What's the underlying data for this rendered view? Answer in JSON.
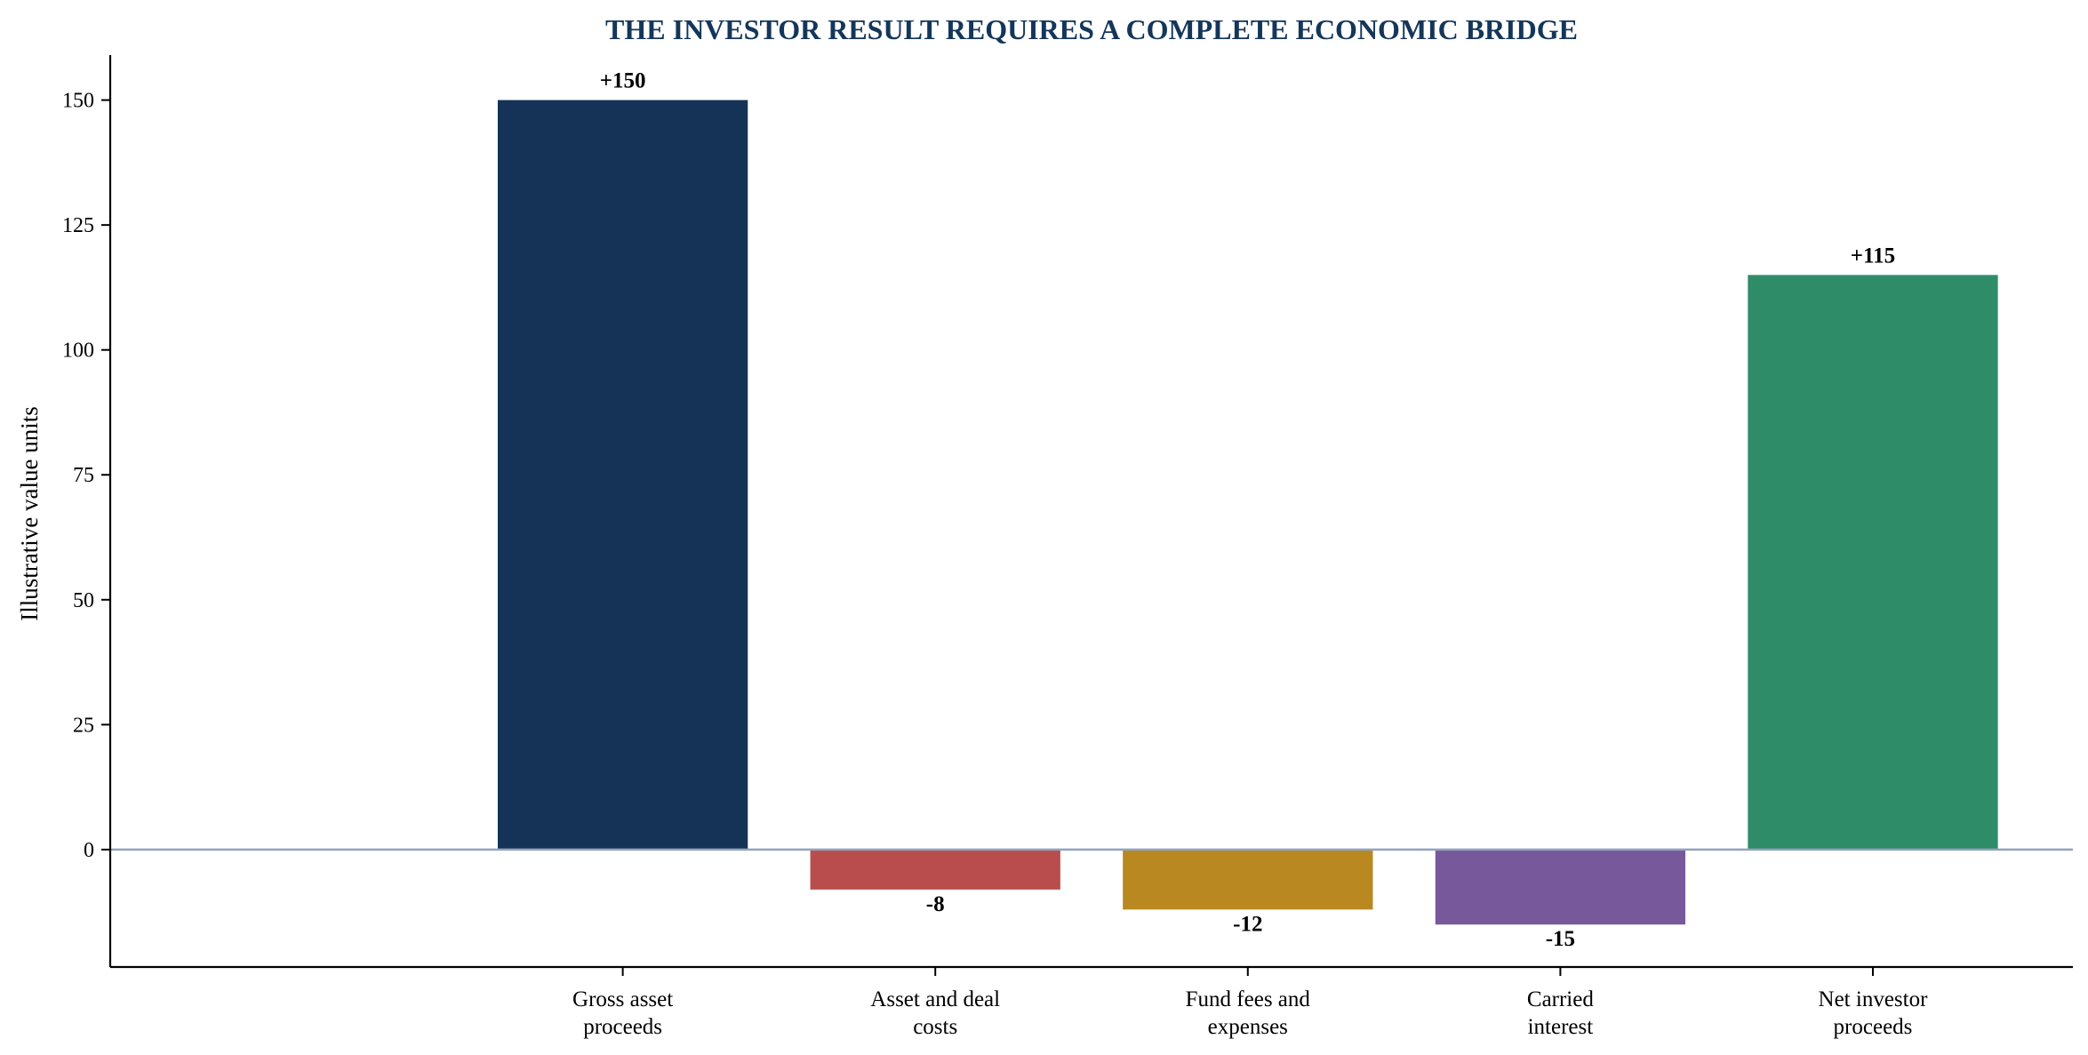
{
  "chart_data": {
    "type": "bar",
    "title": "THE INVESTOR RESULT REQUIRES A COMPLETE ECONOMIC BRIDGE",
    "xlabel": "",
    "ylabel": "Illustrative value units",
    "ylim": [
      -23.5,
      159
    ],
    "yticks": [
      0,
      25,
      50,
      75,
      100,
      125,
      150
    ],
    "yticks_text": [
      "0",
      "25",
      "50",
      "75",
      "100",
      "125",
      "150"
    ],
    "grid": false,
    "zero_line_color": "#94a3bd",
    "categories": [
      [
        "Gross asset",
        "proceeds"
      ],
      [
        "Asset and deal",
        "costs"
      ],
      [
        "Fund fees and",
        "expenses"
      ],
      [
        "Carried",
        "interest"
      ],
      [
        "Net investor",
        "proceeds"
      ]
    ],
    "values": [
      150,
      -8,
      -12,
      -15,
      115
    ],
    "value_labels": [
      "+150",
      "-8",
      "-12",
      "-15",
      "+115"
    ],
    "colors": [
      "#143357",
      "#b94c4c",
      "#b98820",
      "#77589b",
      "#2f8c69"
    ]
  }
}
